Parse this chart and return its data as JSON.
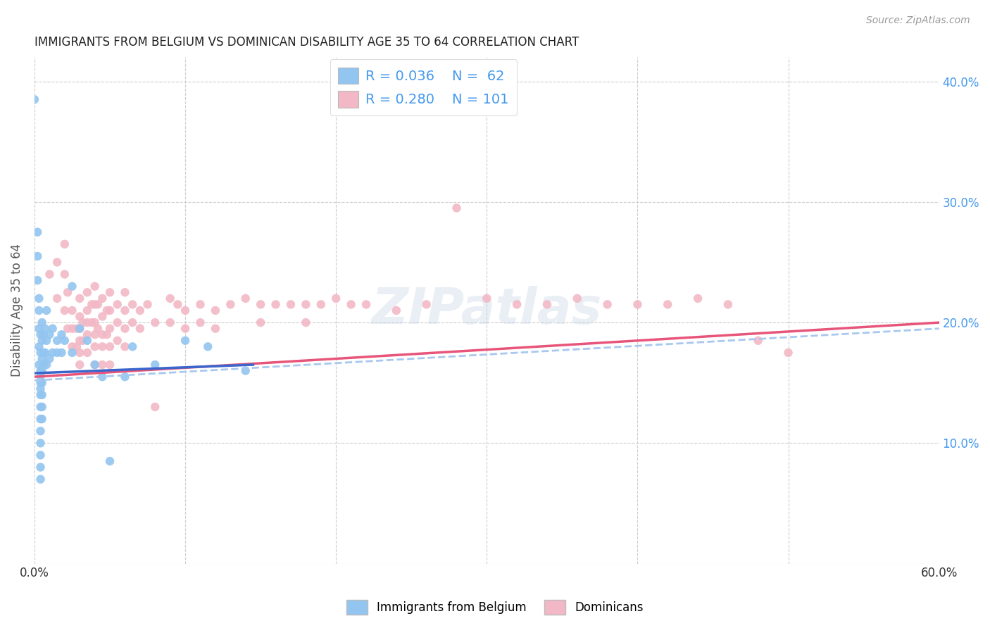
{
  "title": "IMMIGRANTS FROM BELGIUM VS DOMINICAN DISABILITY AGE 35 TO 64 CORRELATION CHART",
  "source": "Source: ZipAtlas.com",
  "ylabel": "Disability Age 35 to 64",
  "watermark": "ZIPatlas",
  "legend_blue_r": "R = 0.036",
  "legend_blue_n": "N =  62",
  "legend_pink_r": "R = 0.280",
  "legend_pink_n": "N = 101",
  "legend_label_blue": "Immigrants from Belgium",
  "legend_label_pink": "Dominicans",
  "xlim": [
    0.0,
    0.6
  ],
  "ylim": [
    0.0,
    0.42
  ],
  "blue_color": "#92C5F0",
  "pink_color": "#F2B8C6",
  "blue_line_color": "#3A66CC",
  "pink_line_color": "#E8557A",
  "dash_line_color": "#A8C8F0",
  "background_color": "#FFFFFF",
  "title_color": "#222222",
  "source_color": "#999999",
  "tick_color": "#4499EE",
  "ylabel_color": "#555555",
  "blue_scatter": [
    [
      0.0,
      0.385
    ],
    [
      0.002,
      0.275
    ],
    [
      0.002,
      0.255
    ],
    [
      0.002,
      0.235
    ],
    [
      0.003,
      0.22
    ],
    [
      0.003,
      0.21
    ],
    [
      0.003,
      0.195
    ],
    [
      0.003,
      0.18
    ],
    [
      0.003,
      0.165
    ],
    [
      0.004,
      0.19
    ],
    [
      0.004,
      0.175
    ],
    [
      0.004,
      0.16
    ],
    [
      0.004,
      0.155
    ],
    [
      0.004,
      0.15
    ],
    [
      0.004,
      0.145
    ],
    [
      0.004,
      0.14
    ],
    [
      0.004,
      0.13
    ],
    [
      0.004,
      0.12
    ],
    [
      0.004,
      0.11
    ],
    [
      0.004,
      0.1
    ],
    [
      0.004,
      0.09
    ],
    [
      0.004,
      0.08
    ],
    [
      0.004,
      0.07
    ],
    [
      0.005,
      0.2
    ],
    [
      0.005,
      0.185
    ],
    [
      0.005,
      0.17
    ],
    [
      0.005,
      0.16
    ],
    [
      0.005,
      0.15
    ],
    [
      0.005,
      0.14
    ],
    [
      0.005,
      0.13
    ],
    [
      0.005,
      0.12
    ],
    [
      0.006,
      0.19
    ],
    [
      0.006,
      0.175
    ],
    [
      0.006,
      0.165
    ],
    [
      0.007,
      0.195
    ],
    [
      0.007,
      0.175
    ],
    [
      0.008,
      0.21
    ],
    [
      0.008,
      0.185
    ],
    [
      0.008,
      0.165
    ],
    [
      0.01,
      0.19
    ],
    [
      0.01,
      0.17
    ],
    [
      0.012,
      0.195
    ],
    [
      0.012,
      0.175
    ],
    [
      0.015,
      0.185
    ],
    [
      0.015,
      0.175
    ],
    [
      0.018,
      0.19
    ],
    [
      0.018,
      0.175
    ],
    [
      0.02,
      0.185
    ],
    [
      0.025,
      0.23
    ],
    [
      0.025,
      0.175
    ],
    [
      0.03,
      0.195
    ],
    [
      0.035,
      0.185
    ],
    [
      0.04,
      0.165
    ],
    [
      0.045,
      0.155
    ],
    [
      0.05,
      0.085
    ],
    [
      0.06,
      0.155
    ],
    [
      0.065,
      0.18
    ],
    [
      0.08,
      0.165
    ],
    [
      0.1,
      0.185
    ],
    [
      0.115,
      0.18
    ],
    [
      0.14,
      0.16
    ]
  ],
  "pink_scatter": [
    [
      0.01,
      0.24
    ],
    [
      0.015,
      0.25
    ],
    [
      0.015,
      0.22
    ],
    [
      0.02,
      0.265
    ],
    [
      0.02,
      0.24
    ],
    [
      0.02,
      0.21
    ],
    [
      0.022,
      0.225
    ],
    [
      0.022,
      0.195
    ],
    [
      0.025,
      0.21
    ],
    [
      0.025,
      0.195
    ],
    [
      0.025,
      0.18
    ],
    [
      0.028,
      0.195
    ],
    [
      0.028,
      0.18
    ],
    [
      0.03,
      0.22
    ],
    [
      0.03,
      0.205
    ],
    [
      0.03,
      0.195
    ],
    [
      0.03,
      0.185
    ],
    [
      0.03,
      0.175
    ],
    [
      0.03,
      0.165
    ],
    [
      0.032,
      0.2
    ],
    [
      0.032,
      0.185
    ],
    [
      0.035,
      0.225
    ],
    [
      0.035,
      0.21
    ],
    [
      0.035,
      0.2
    ],
    [
      0.035,
      0.19
    ],
    [
      0.035,
      0.175
    ],
    [
      0.038,
      0.215
    ],
    [
      0.038,
      0.2
    ],
    [
      0.04,
      0.23
    ],
    [
      0.04,
      0.215
    ],
    [
      0.04,
      0.2
    ],
    [
      0.04,
      0.19
    ],
    [
      0.04,
      0.18
    ],
    [
      0.04,
      0.165
    ],
    [
      0.042,
      0.215
    ],
    [
      0.042,
      0.195
    ],
    [
      0.045,
      0.22
    ],
    [
      0.045,
      0.205
    ],
    [
      0.045,
      0.19
    ],
    [
      0.045,
      0.18
    ],
    [
      0.045,
      0.165
    ],
    [
      0.048,
      0.21
    ],
    [
      0.048,
      0.19
    ],
    [
      0.05,
      0.225
    ],
    [
      0.05,
      0.21
    ],
    [
      0.05,
      0.195
    ],
    [
      0.05,
      0.18
    ],
    [
      0.05,
      0.165
    ],
    [
      0.055,
      0.215
    ],
    [
      0.055,
      0.2
    ],
    [
      0.055,
      0.185
    ],
    [
      0.06,
      0.225
    ],
    [
      0.06,
      0.21
    ],
    [
      0.06,
      0.195
    ],
    [
      0.06,
      0.18
    ],
    [
      0.065,
      0.215
    ],
    [
      0.065,
      0.2
    ],
    [
      0.07,
      0.21
    ],
    [
      0.07,
      0.195
    ],
    [
      0.075,
      0.215
    ],
    [
      0.08,
      0.2
    ],
    [
      0.08,
      0.13
    ],
    [
      0.09,
      0.22
    ],
    [
      0.09,
      0.2
    ],
    [
      0.095,
      0.215
    ],
    [
      0.1,
      0.21
    ],
    [
      0.1,
      0.195
    ],
    [
      0.11,
      0.215
    ],
    [
      0.11,
      0.2
    ],
    [
      0.12,
      0.21
    ],
    [
      0.12,
      0.195
    ],
    [
      0.13,
      0.215
    ],
    [
      0.14,
      0.22
    ],
    [
      0.15,
      0.215
    ],
    [
      0.15,
      0.2
    ],
    [
      0.16,
      0.215
    ],
    [
      0.17,
      0.215
    ],
    [
      0.18,
      0.215
    ],
    [
      0.18,
      0.2
    ],
    [
      0.19,
      0.215
    ],
    [
      0.2,
      0.22
    ],
    [
      0.21,
      0.215
    ],
    [
      0.22,
      0.215
    ],
    [
      0.24,
      0.21
    ],
    [
      0.26,
      0.215
    ],
    [
      0.28,
      0.295
    ],
    [
      0.3,
      0.22
    ],
    [
      0.32,
      0.215
    ],
    [
      0.34,
      0.215
    ],
    [
      0.36,
      0.22
    ],
    [
      0.38,
      0.215
    ],
    [
      0.4,
      0.215
    ],
    [
      0.42,
      0.215
    ],
    [
      0.44,
      0.22
    ],
    [
      0.46,
      0.215
    ],
    [
      0.48,
      0.185
    ],
    [
      0.5,
      0.175
    ]
  ],
  "blue_trend_x": [
    0.0,
    0.145
  ],
  "blue_trend_y": [
    0.158,
    0.165
  ],
  "pink_trend_x": [
    0.0,
    0.6
  ],
  "pink_trend_y": [
    0.155,
    0.2
  ],
  "dash_trend_x": [
    0.0,
    0.6
  ],
  "dash_trend_y": [
    0.152,
    0.195
  ]
}
